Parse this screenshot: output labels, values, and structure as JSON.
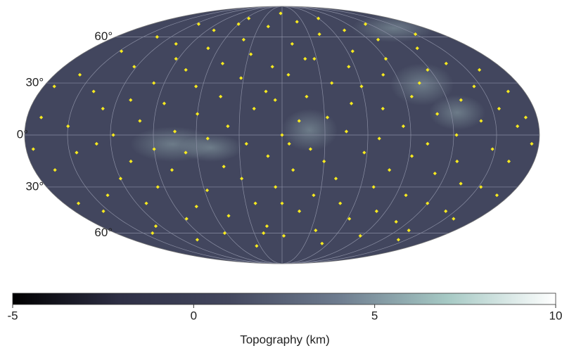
{
  "map": {
    "projection": "mollweide",
    "lat_labels": [
      {
        "value": 60,
        "label": "60°"
      },
      {
        "value": 30,
        "label": "30°"
      },
      {
        "value": 0,
        "label": "0°"
      },
      {
        "value": -30,
        "label": "30°"
      },
      {
        "value": -60,
        "label": "60°"
      }
    ],
    "meridians": [
      -150,
      -120,
      -90,
      -60,
      -30,
      0,
      30,
      60,
      90,
      120,
      150
    ],
    "land_color": "#42465e",
    "grid_color": "#8a8ea3",
    "point_color": "#f7ea1f",
    "points": [
      [
        -170,
        10
      ],
      [
        -165,
        -20
      ],
      [
        -160,
        35
      ],
      [
        -155,
        -45
      ],
      [
        -150,
        5
      ],
      [
        -148,
        50
      ],
      [
        -145,
        -10
      ],
      [
        -140,
        25
      ],
      [
        -138,
        -35
      ],
      [
        -135,
        60
      ],
      [
        -130,
        -5
      ],
      [
        -128,
        15
      ],
      [
        -125,
        -55
      ],
      [
        -122,
        40
      ],
      [
        -120,
        -25
      ],
      [
        -118,
        0
      ],
      [
        -115,
        70
      ],
      [
        -112,
        -40
      ],
      [
        -110,
        20
      ],
      [
        -108,
        -15
      ],
      [
        -105,
        55
      ],
      [
        -102,
        -65
      ],
      [
        -100,
        8
      ],
      [
        -98,
        30
      ],
      [
        -95,
        -30
      ],
      [
        -92,
        45
      ],
      [
        -90,
        -8
      ],
      [
        -88,
        -50
      ],
      [
        -85,
        18
      ],
      [
        -82,
        65
      ],
      [
        -80,
        -20
      ],
      [
        -78,
        38
      ],
      [
        -75,
        2
      ],
      [
        -72,
        -42
      ],
      [
        -70,
        52
      ],
      [
        -68,
        -10
      ],
      [
        -65,
        28
      ],
      [
        -62,
        -60
      ],
      [
        -60,
        12
      ],
      [
        -58,
        -32
      ],
      [
        -55,
        75
      ],
      [
        -52,
        -2
      ],
      [
        -50,
        42
      ],
      [
        -48,
        -48
      ],
      [
        -45,
        22
      ],
      [
        -42,
        -18
      ],
      [
        -40,
        58
      ],
      [
        -38,
        5
      ],
      [
        -35,
        -70
      ],
      [
        -32,
        33
      ],
      [
        -30,
        -25
      ],
      [
        -28,
        48
      ],
      [
        -25,
        -5
      ],
      [
        -22,
        -40
      ],
      [
        -20,
        15
      ],
      [
        -18,
        68
      ],
      [
        -15,
        -55
      ],
      [
        -12,
        25
      ],
      [
        -10,
        -12
      ],
      [
        -8,
        40
      ],
      [
        -5,
        -30
      ],
      [
        -3,
        80
      ],
      [
        0,
        0
      ],
      [
        2,
        -62
      ],
      [
        5,
        35
      ],
      [
        8,
        -20
      ],
      [
        10,
        55
      ],
      [
        12,
        8
      ],
      [
        15,
        -45
      ],
      [
        18,
        22
      ],
      [
        20,
        -8
      ],
      [
        22,
        72
      ],
      [
        25,
        -35
      ],
      [
        28,
        45
      ],
      [
        30,
        -15
      ],
      [
        32,
        10
      ],
      [
        35,
        -58
      ],
      [
        38,
        30
      ],
      [
        40,
        -25
      ],
      [
        42,
        62
      ],
      [
        45,
        2
      ],
      [
        48,
        -40
      ],
      [
        50,
        18
      ],
      [
        52,
        -68
      ],
      [
        55,
        40
      ],
      [
        58,
        -10
      ],
      [
        60,
        28
      ],
      [
        62,
        -50
      ],
      [
        65,
        50
      ],
      [
        68,
        -2
      ],
      [
        70,
        -30
      ],
      [
        72,
        15
      ],
      [
        75,
        65
      ],
      [
        78,
        -20
      ],
      [
        80,
        35
      ],
      [
        82,
        -45
      ],
      [
        85,
        5
      ],
      [
        88,
        -62
      ],
      [
        90,
        45
      ],
      [
        92,
        -12
      ],
      [
        95,
        22
      ],
      [
        98,
        -35
      ],
      [
        100,
        58
      ],
      [
        102,
        -5
      ],
      [
        105,
        30
      ],
      [
        108,
        -52
      ],
      [
        110,
        12
      ],
      [
        112,
        -22
      ],
      [
        115,
        70
      ],
      [
        118,
        38
      ],
      [
        120,
        -40
      ],
      [
        122,
        0
      ],
      [
        125,
        -15
      ],
      [
        128,
        52
      ],
      [
        130,
        20
      ],
      [
        132,
        -58
      ],
      [
        135,
        -28
      ],
      [
        138,
        42
      ],
      [
        140,
        8
      ],
      [
        142,
        -45
      ],
      [
        145,
        28
      ],
      [
        148,
        -8
      ],
      [
        150,
        62
      ],
      [
        152,
        -30
      ],
      [
        155,
        15
      ],
      [
        158,
        -50
      ],
      [
        160,
        38
      ],
      [
        162,
        -15
      ],
      [
        165,
        5
      ],
      [
        168,
        25
      ],
      [
        170,
        -35
      ],
      [
        172,
        10
      ],
      [
        175,
        -5
      ],
      [
        -175,
        -8
      ],
      [
        -172,
        28
      ],
      [
        -168,
        -40
      ],
      [
        -60,
        70
      ],
      [
        60,
        75
      ],
      [
        -140,
        -60
      ],
      [
        140,
        -65
      ],
      [
        0,
        -40
      ],
      [
        -5,
        20
      ],
      [
        5,
        -5
      ],
      [
        20,
        45
      ],
      [
        -20,
        -60
      ]
    ]
  },
  "colorbar": {
    "title": "Topography (km)",
    "clim": [
      -5,
      10
    ],
    "ticks": [
      -5,
      0,
      5,
      10
    ],
    "colormap": [
      "#000000",
      "#2f3046",
      "#44485f",
      "#6e7c8f",
      "#a6c9c4",
      "#ffffff"
    ]
  }
}
